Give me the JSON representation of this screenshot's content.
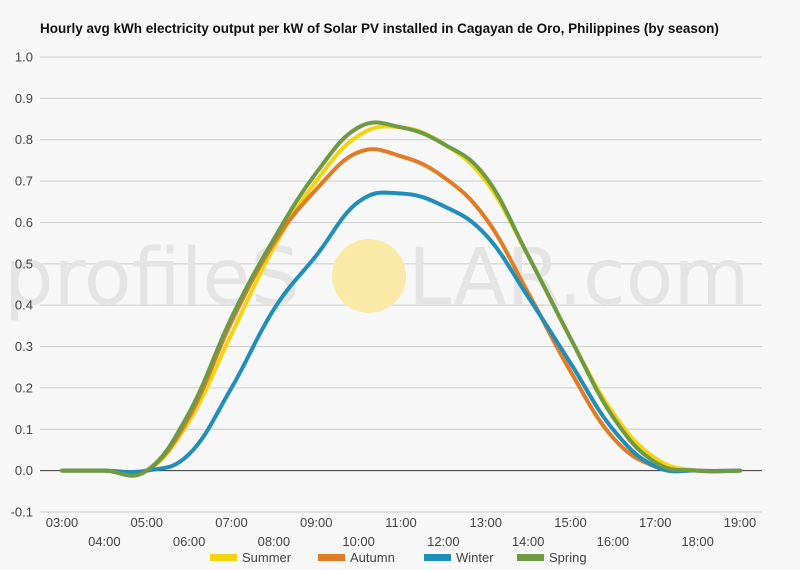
{
  "chart_data": {
    "type": "line",
    "title": "Hourly avg kWh electricity output per kW of Solar PV installed in Cagayan de Oro, Philippines (by season)",
    "xlabel": "",
    "ylabel": "",
    "ylim": [
      -0.1,
      1.0
    ],
    "yticks": [
      "-0.1",
      "0.0",
      "0.1",
      "0.2",
      "0.3",
      "0.4",
      "0.5",
      "0.6",
      "0.7",
      "0.8",
      "0.9",
      "1.0"
    ],
    "yticks_values": [
      -0.1,
      0.0,
      0.1,
      0.2,
      0.3,
      0.4,
      0.5,
      0.6,
      0.7,
      0.8,
      0.9,
      1.0
    ],
    "x": [
      "03:00",
      "04:00",
      "05:00",
      "06:00",
      "07:00",
      "08:00",
      "09:00",
      "10:00",
      "11:00",
      "12:00",
      "13:00",
      "14:00",
      "15:00",
      "16:00",
      "17:00",
      "18:00",
      "19:00"
    ],
    "grid": true,
    "legend_position": "bottom",
    "series": [
      {
        "name": "Summer",
        "color": "#f5d40f",
        "values": [
          0.0,
          0.0,
          0.0,
          0.12,
          0.33,
          0.54,
          0.7,
          0.81,
          0.83,
          0.79,
          0.7,
          0.52,
          0.32,
          0.14,
          0.03,
          0.0,
          0.0
        ]
      },
      {
        "name": "Autumn",
        "color": "#e07b26",
        "values": [
          0.0,
          0.0,
          0.0,
          0.13,
          0.36,
          0.55,
          0.68,
          0.77,
          0.76,
          0.71,
          0.61,
          0.43,
          0.24,
          0.08,
          0.01,
          0.0,
          0.0
        ]
      },
      {
        "name": "Winter",
        "color": "#1f8fba",
        "values": [
          0.0,
          0.0,
          0.0,
          0.04,
          0.2,
          0.39,
          0.52,
          0.65,
          0.67,
          0.64,
          0.57,
          0.42,
          0.26,
          0.1,
          0.01,
          0.0,
          0.0
        ]
      },
      {
        "name": "Spring",
        "color": "#6e9a44",
        "values": [
          0.0,
          0.0,
          0.0,
          0.14,
          0.37,
          0.56,
          0.72,
          0.83,
          0.83,
          0.79,
          0.71,
          0.52,
          0.32,
          0.13,
          0.02,
          0.0,
          0.0
        ]
      }
    ],
    "axis_color": "#333333",
    "grid_color": "#cccccc"
  },
  "watermark": {
    "left": "profileS",
    "right": "LAR.com",
    "sun_color": "#fbe9a8"
  }
}
